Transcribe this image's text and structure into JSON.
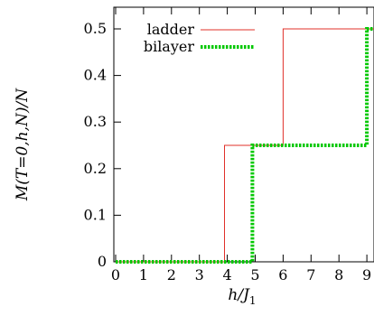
{
  "chart_data": {
    "type": "line",
    "xlabel": "h/J",
    "xlabel_sub": "1",
    "ylabel": "M(T=0,h,N)/N",
    "xlim": [
      0,
      9.3
    ],
    "ylim": [
      0,
      0.55
    ],
    "xticks": [
      "0",
      "1",
      "2",
      "3",
      "4",
      "5",
      "6",
      "7",
      "8",
      "9"
    ],
    "yticks": [
      "0",
      "0.1",
      "0.2",
      "0.3",
      "0.4",
      "0.5"
    ],
    "grid": false,
    "legend_position": "top-left",
    "series": [
      {
        "name": "ladder",
        "color": "#e0302a",
        "style": "solid",
        "x": [
          0,
          3.9,
          3.9,
          6.0,
          6.0,
          9.3
        ],
        "y": [
          0,
          0,
          0.25,
          0.25,
          0.5,
          0.5
        ]
      },
      {
        "name": "bilayer",
        "color": "#00c800",
        "style": "dotted",
        "x": [
          0,
          4.9,
          4.9,
          9.0,
          9.0,
          9.3
        ],
        "y": [
          0,
          0,
          0.25,
          0.25,
          0.5,
          0.5
        ]
      }
    ]
  }
}
